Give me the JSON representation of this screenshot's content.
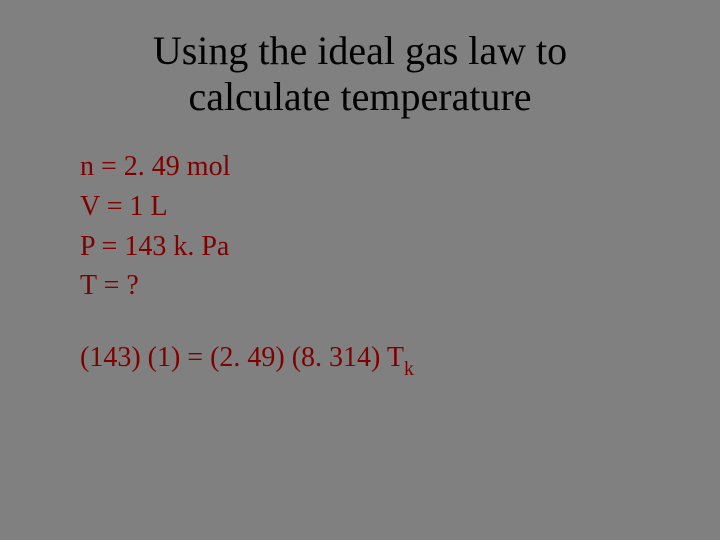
{
  "slide": {
    "background_color": "#808080",
    "title_color": "#000000",
    "body_color": "#800000",
    "font_family": "Times New Roman",
    "title_fontsize": 40,
    "body_fontsize": 28,
    "title": "Using the ideal gas law to calculate temperature",
    "lines": {
      "n": "n = 2. 49 mol",
      "v": "V = 1 L",
      "p": "P = 143 k. Pa",
      "t": "T = ?",
      "eq_lhs": "(143) (1) = (2. 49) (8. 314) T",
      "eq_sub": "k"
    }
  }
}
